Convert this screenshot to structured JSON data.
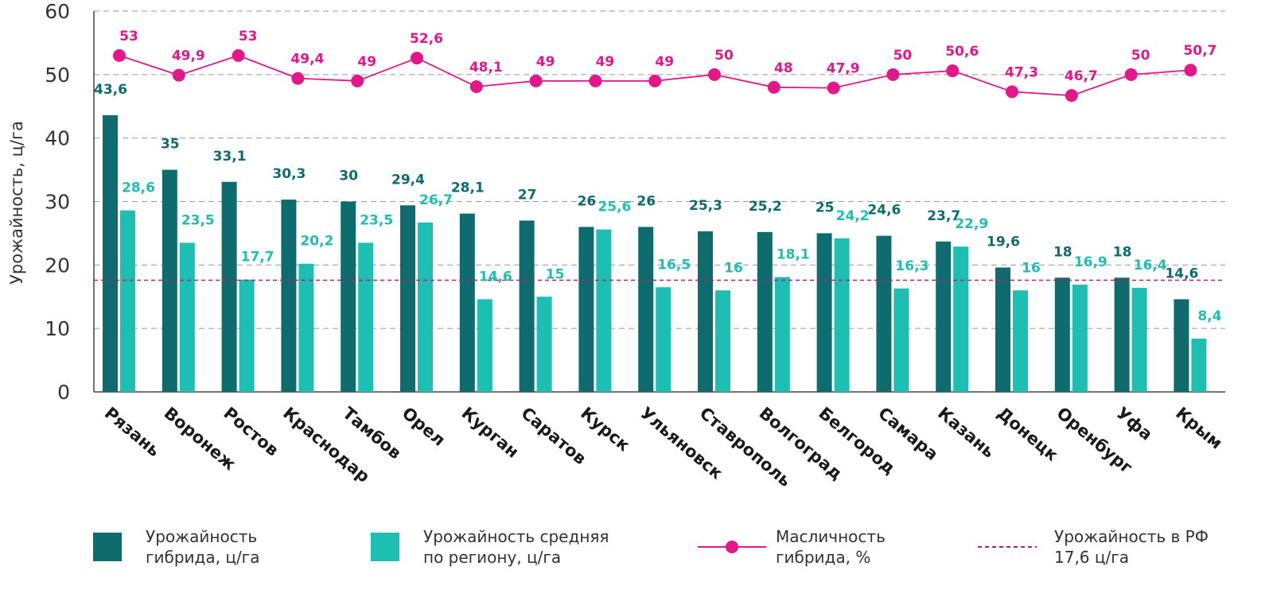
{
  "chart_data": {
    "type": "bar",
    "ylabel": "Урожайность, ц/га",
    "ylim": [
      0,
      60
    ],
    "yticks": [
      0,
      10,
      20,
      30,
      40,
      50,
      60
    ],
    "grid": true,
    "categories": [
      "Рязань",
      "Воронеж",
      "Ростов",
      "Краснодар",
      "Тамбов",
      "Орел",
      "Курган",
      "Саратов",
      "Курск",
      "Ульяновск",
      "Ставрополь",
      "Волгоград",
      "Белгород",
      "Самара",
      "Казань",
      "Донецк",
      "Оренбург",
      "Уфа",
      "Крым"
    ],
    "series": [
      {
        "name": "Урожайность гибрида, ц/га",
        "type": "bar",
        "color": "#0e6b6e",
        "values": [
          43.6,
          35,
          33.1,
          30.3,
          30,
          29.4,
          28.1,
          27,
          26,
          26,
          25.3,
          25.2,
          25,
          24.6,
          23.7,
          19.6,
          18,
          18,
          14.6
        ],
        "labels": [
          "43,6",
          "35",
          "33,1",
          "30,3",
          "30",
          "29,4",
          "28,1",
          "27",
          "26",
          "26",
          "25,3",
          "25,2",
          "25",
          "24,6",
          "23,7",
          "19,6",
          "18",
          "18",
          "14,6"
        ]
      },
      {
        "name": "Урожайность средняя по региону, ц/га",
        "type": "bar",
        "color": "#1dbfb3",
        "values": [
          28.6,
          23.5,
          17.7,
          20.2,
          23.5,
          26.7,
          14.6,
          15,
          25.6,
          16.5,
          16,
          18.1,
          24.2,
          16.3,
          22.9,
          16,
          16.9,
          16.4,
          8.4
        ],
        "labels": [
          "28,6",
          "23,5",
          "17,7",
          "20,2",
          "23,5",
          "26,7",
          "14,6",
          "15",
          "25,6",
          "16,5",
          "16",
          "18,1",
          "24,2",
          "16,3",
          "22,9",
          "16",
          "16,9",
          "16,4",
          "8,4"
        ]
      },
      {
        "name": "Масличность гибрида, %",
        "type": "line",
        "color": "#e3178a",
        "values": [
          53,
          49.9,
          53,
          49.4,
          49,
          52.6,
          48.1,
          49,
          49,
          49,
          50,
          48,
          47.9,
          50,
          50.6,
          47.3,
          46.7,
          50,
          50.7
        ],
        "labels": [
          "53",
          "49,9",
          "53",
          "49,4",
          "49",
          "52,6",
          "48,1",
          "49",
          "49",
          "49",
          "50",
          "48",
          "47,9",
          "50",
          "50,6",
          "47,3",
          "46,7",
          "50",
          "50,7"
        ]
      }
    ],
    "reference_line": {
      "name": "Урожайность в РФ 17,6 ц/га",
      "value": 17.6,
      "color": "#b0206e",
      "style": "dashed"
    },
    "legend": {
      "position": "bottom",
      "items": [
        {
          "label": "Урожайность\nгибрида, ц/га",
          "kind": "box",
          "color": "#0e6b6e"
        },
        {
          "label": "Урожайность средняя\nпо региону, ц/га",
          "kind": "box",
          "color": "#1dbfb3"
        },
        {
          "label": "Масличность\nгибрида, %",
          "kind": "line-marker",
          "color": "#e3178a"
        },
        {
          "label": "Урожайность в РФ\n17,6 ц/га",
          "kind": "dashed-line",
          "color": "#b0206e"
        }
      ]
    }
  }
}
